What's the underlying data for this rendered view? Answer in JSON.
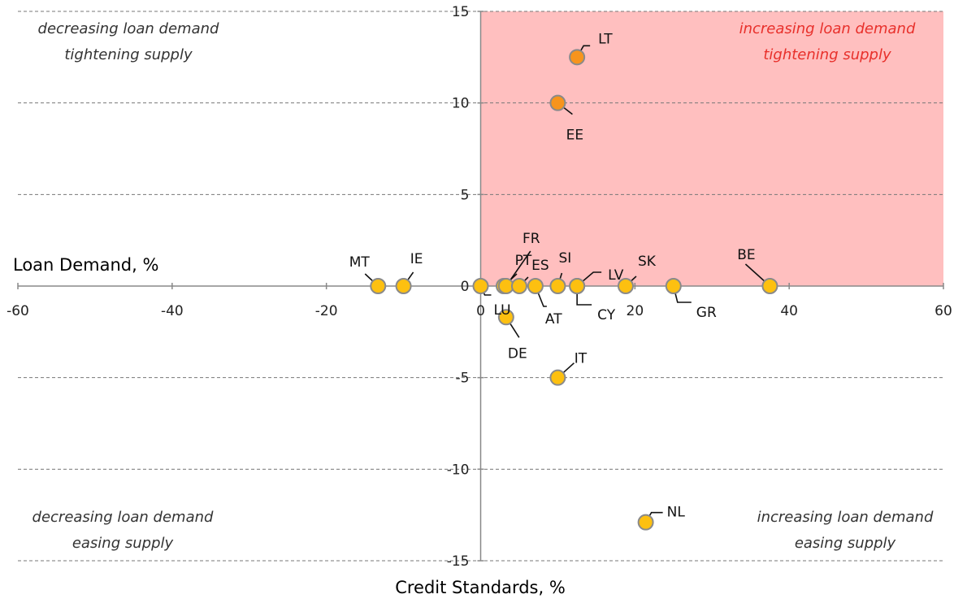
{
  "chart_data": {
    "type": "scatter",
    "xlabel": "Credit Standards, %",
    "ylabel": "Loan Demand, %",
    "xlim": [
      -60,
      60
    ],
    "ylim": [
      -15,
      15
    ],
    "x_ticks": [
      "-60",
      "-40",
      "-20",
      "0",
      "20",
      "40",
      "60"
    ],
    "y_ticks": [
      "15",
      "10",
      "5",
      "0",
      "-5",
      "-10",
      "-15"
    ],
    "grid": "horizontal dashed",
    "highlight_region": {
      "x": [
        0,
        60
      ],
      "y": [
        0,
        15
      ],
      "color": "#ffbfbf"
    },
    "quadrant_labels": [
      {
        "line1": "decreasing loan demand",
        "line2": "tightening supply",
        "color": "#333333",
        "position": "top-left"
      },
      {
        "line1": "increasing loan demand",
        "line2": "tightening supply",
        "color": "#e8302b",
        "position": "top-right"
      },
      {
        "line1": "decreasing loan demand",
        "line2": "easing supply",
        "color": "#333333",
        "position": "bottom-left"
      },
      {
        "line1": "increasing loan demand",
        "line2": "easing supply",
        "color": "#333333",
        "position": "bottom-right"
      }
    ],
    "points": [
      {
        "label": "LT",
        "x": 12.5,
        "y": 12.5,
        "color": "#f7941d"
      },
      {
        "label": "EE",
        "x": 10,
        "y": 10,
        "color": "#f7941d"
      },
      {
        "label": "MT",
        "x": -13.3,
        "y": 0,
        "color": "#fdc010"
      },
      {
        "label": "IE",
        "x": -10,
        "y": 0,
        "color": "#fdc010"
      },
      {
        "label": "LU",
        "x": 0,
        "y": 0,
        "color": "#fdc010"
      },
      {
        "label": "PT",
        "x": 3,
        "y": 0,
        "color": "#fdc010"
      },
      {
        "label": "FR",
        "x": 3.3,
        "y": 0,
        "color": "#fdc010"
      },
      {
        "label": "ES",
        "x": 5,
        "y": 0,
        "color": "#fdc010"
      },
      {
        "label": "AT",
        "x": 7.1,
        "y": 0,
        "color": "#fdc010"
      },
      {
        "label": "SI",
        "x": 10,
        "y": 0,
        "color": "#fdc010"
      },
      {
        "label": "CY",
        "x": 12.5,
        "y": 0,
        "color": "#fdc010"
      },
      {
        "label": "LV",
        "x": 12.5,
        "y": 0,
        "color": "#fdc010"
      },
      {
        "label": "SK",
        "x": 18.8,
        "y": 0,
        "color": "#fdc010"
      },
      {
        "label": "GR",
        "x": 25,
        "y": 0,
        "color": "#fdc010"
      },
      {
        "label": "BE",
        "x": 37.5,
        "y": 0,
        "color": "#fdc010"
      },
      {
        "label": "DE",
        "x": 3.3,
        "y": -1.7,
        "color": "#fdc010"
      },
      {
        "label": "IT",
        "x": 10,
        "y": -5,
        "color": "#fdc010"
      },
      {
        "label": "NL",
        "x": 21.4,
        "y": -12.9,
        "color": "#fdc010"
      }
    ]
  }
}
